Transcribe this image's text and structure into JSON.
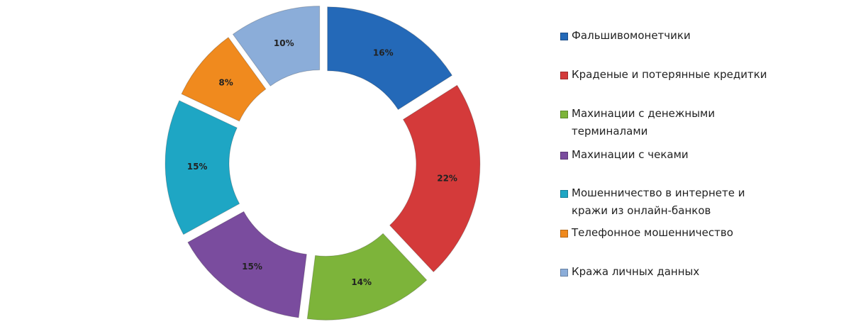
{
  "chart_data": {
    "type": "donut",
    "categories": [
      "Фальшивомонетчики",
      "Краденые и потерянные кредитки",
      "Махинации с денежными терминалами",
      "Махинации с чеками",
      "Мошенничество в интернете и кражи из онлайн-банков",
      "Телефонное мошенничество",
      "Кража личных данных"
    ],
    "values": [
      16,
      22,
      14,
      15,
      15,
      8,
      10
    ],
    "value_labels": [
      "16%",
      "22%",
      "14%",
      "15%",
      "15%",
      "8%",
      "10%"
    ],
    "colors": [
      "#2469b8",
      "#d43a3a",
      "#7db43a",
      "#7a4c9e",
      "#1ea6c4",
      "#f08a1e",
      "#8badd9"
    ]
  }
}
